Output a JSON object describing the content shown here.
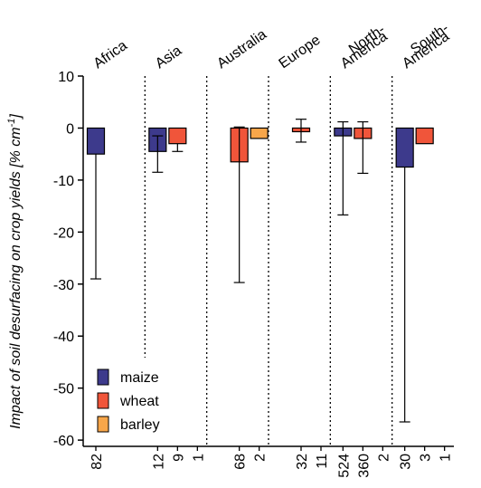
{
  "chart_data": {
    "type": "bar",
    "categories": [
      "Africa",
      "Asia",
      "Australia",
      "Europe",
      [
        "North-",
        "America"
      ],
      [
        "South-",
        "America"
      ]
    ],
    "ylabel": [
      "Impact of soil desurfacing on crop yields [% cm",
      "-1",
      "]"
    ],
    "ylim": [
      -61.2,
      10
    ],
    "yticks": [
      -60,
      -50,
      -40,
      -30,
      -20,
      -10,
      0,
      10
    ],
    "legend": "lower left",
    "series": [
      {
        "name": "maize",
        "color": "#3d3a8c",
        "values": [
          -5,
          -4.5,
          null,
          null,
          -1.5,
          -7.5
        ],
        "lower": [
          -29,
          -8.5,
          null,
          null,
          -16.7,
          -56.5
        ],
        "upper": [
          null,
          -1.5,
          null,
          null,
          1.2,
          null
        ],
        "n": [
          82,
          12,
          null,
          null,
          524,
          30
        ]
      },
      {
        "name": "wheat",
        "color": "#f0553a",
        "values": [
          null,
          -3,
          -6.5,
          -0.7,
          -2,
          -3
        ],
        "lower": [
          null,
          -4.5,
          -29.7,
          -2.7,
          -8.7,
          null
        ],
        "upper": [
          null,
          null,
          0.2,
          1.7,
          1.2,
          null
        ],
        "n": [
          null,
          9,
          68,
          32,
          360,
          3
        ]
      },
      {
        "name": "barley",
        "color": "#f7a64a",
        "values": [
          null,
          0,
          -2,
          0,
          0,
          0
        ],
        "lower": [
          null,
          null,
          null,
          null,
          null,
          null
        ],
        "upper": [
          null,
          null,
          null,
          null,
          null,
          null
        ],
        "n": [
          null,
          1,
          2,
          11,
          2,
          1
        ]
      }
    ]
  }
}
